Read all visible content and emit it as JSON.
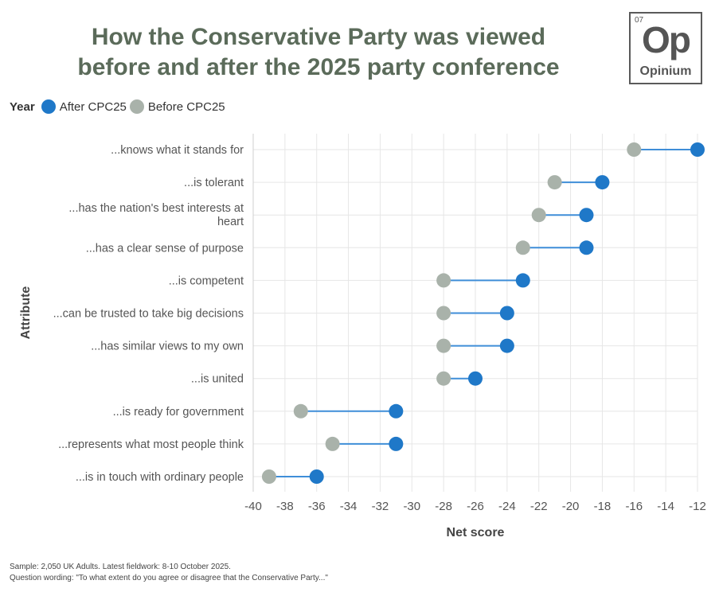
{
  "header": {
    "title_line1": "How the Conservative Party was viewed",
    "title_line2": "before and after the 2025 party conference"
  },
  "logo": {
    "number": "07",
    "symbol": "Op",
    "name": "Opinium"
  },
  "footer": {
    "sample": "Sample: 2,050 UK Adults. Latest fieldwork: 8-10 October 2025.",
    "question": "Question wording: \"To what extent do you agree or disagree that the Conservative Party...\""
  },
  "colors": {
    "after": "#1f78c8",
    "before": "#a9b2aa",
    "connector": "#3f8ed8",
    "grid": "#e6e6e6",
    "title": "#5b6b5a"
  },
  "chart_data": {
    "type": "dumbbell",
    "xlabel": "Net score",
    "ylabel": "Attribute",
    "legend_title": "Year",
    "legend_position": "top-left",
    "xlim": [
      -40,
      -12
    ],
    "xticks": [
      -40,
      -38,
      -36,
      -34,
      -32,
      -30,
      -28,
      -26,
      -24,
      -22,
      -20,
      -18,
      -16,
      -14,
      -12
    ],
    "grid": true,
    "series": [
      {
        "name": "After CPC25",
        "color": "#1f78c8"
      },
      {
        "name": "Before CPC25",
        "color": "#a9b2aa"
      }
    ],
    "categories": [
      "...knows what it stands for",
      "...is tolerant",
      "...has the nation's best interests at heart",
      "...has a clear sense of purpose",
      "...is competent",
      "...can be trusted to take big decisions",
      "...has similar views to my own",
      "...is united",
      "...is ready for government",
      "...represents what most people think",
      "...is in touch with ordinary people"
    ],
    "category_lines": [
      [
        "...knows what it stands for"
      ],
      [
        "...is tolerant"
      ],
      [
        "...has the nation's best interests at",
        "heart"
      ],
      [
        "...has a clear sense of purpose"
      ],
      [
        "...is competent"
      ],
      [
        "...can be trusted to take big decisions"
      ],
      [
        "...has similar views to my own"
      ],
      [
        "...is united"
      ],
      [
        "...is ready for government"
      ],
      [
        "...represents what most people think"
      ],
      [
        "...is in touch with ordinary people"
      ]
    ],
    "after": [
      -12,
      -18,
      -19,
      -19,
      -23,
      -24,
      -24,
      -26,
      -31,
      -31,
      -36
    ],
    "before": [
      -16,
      -21,
      -22,
      -23,
      -28,
      -28,
      -28,
      -28,
      -37,
      -35,
      -39
    ]
  }
}
